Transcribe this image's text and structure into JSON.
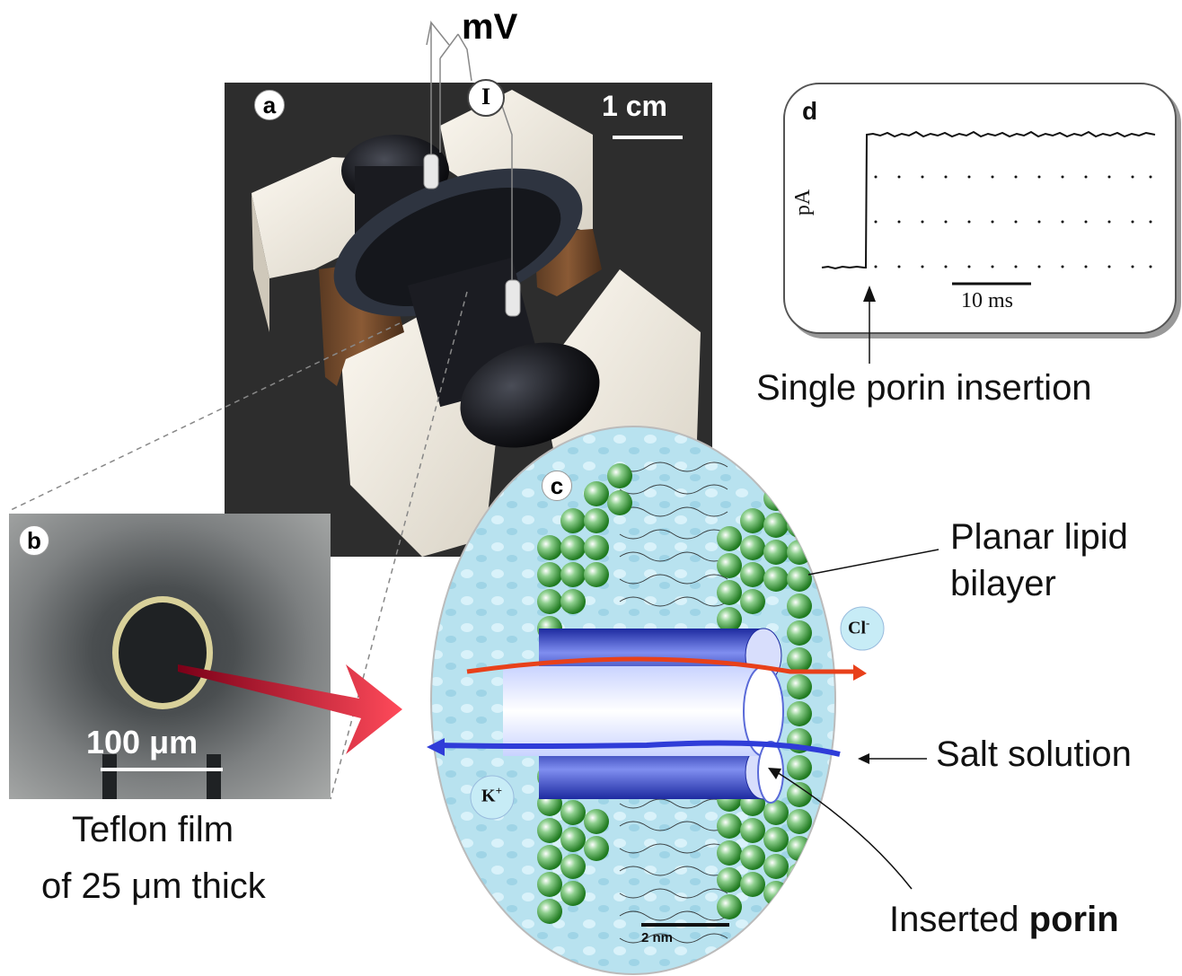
{
  "voltage_label": "mV",
  "current_label": "I",
  "panel_a": {
    "letter": "a",
    "scale_text": "1 cm"
  },
  "panel_b": {
    "letter": "b",
    "scale_text": "100 μm",
    "caption_line1": "Teflon film",
    "caption_line2": "of 25 μm thick"
  },
  "panel_c": {
    "letter": "c",
    "scale_text": "2 nm",
    "anion": "Cl",
    "anion_sup": "-",
    "cation": "K",
    "cation_sup": "+",
    "label_bilayer_line1": "Planar lipid",
    "label_bilayer_line2": "bilayer",
    "label_salt": "Salt solution",
    "label_porin_prefix": "Inserted ",
    "label_porin_bold": "porin"
  },
  "panel_d": {
    "letter": "d",
    "y_unit": "pA",
    "scale_text": "10 ms",
    "caption": "Single porin insertion"
  },
  "colors": {
    "lipid_head": "#2e8b2e",
    "solution": "#b9e3f0",
    "porin": "#3a4fd0",
    "arrow_red": "#d01830",
    "flow_red": "#e8401a",
    "flow_blue": "#2f3cd8"
  }
}
